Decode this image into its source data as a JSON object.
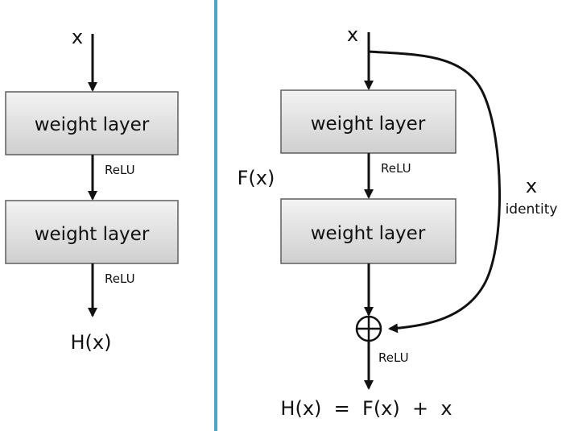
{
  "colors": {
    "divider": "#4ea6c4",
    "box_top": "#f3f3f3",
    "box_bottom": "#cfcfcf",
    "box_stroke": "#5e5e5e",
    "arrow": "#111111"
  },
  "plain_block": {
    "input_label": "x",
    "layer1_label": "weight layer",
    "relu1_label": "ReLU",
    "layer2_label": "weight layer",
    "relu2_label": "ReLU",
    "output_label": "H(x)"
  },
  "residual_block": {
    "input_label": "x",
    "layer1_label": "weight layer",
    "relu1_label": "ReLU",
    "fx_label": "F(x)",
    "layer2_label": "weight layer",
    "shortcut_x_label": "x",
    "shortcut_identity_label": "identity",
    "sum_icon": "circle-plus-icon",
    "relu_after_sum_label": "ReLU",
    "output_label": "H(x)  =  F(x)  +  x"
  }
}
